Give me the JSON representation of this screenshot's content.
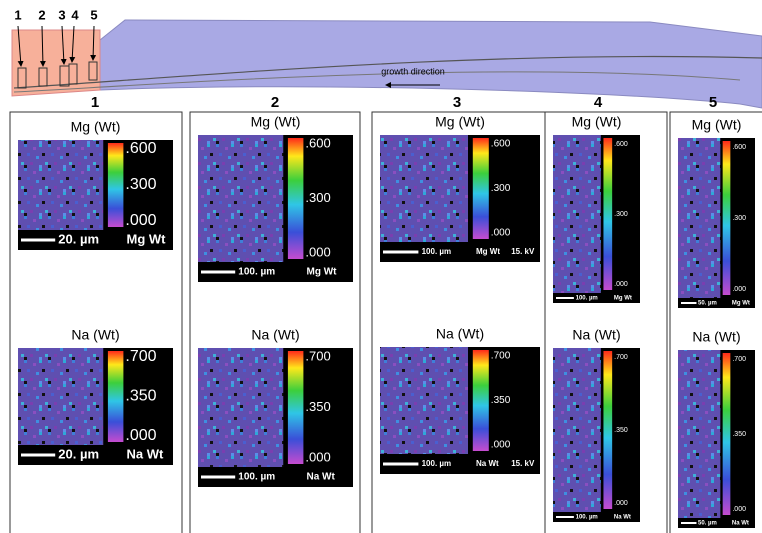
{
  "diagram": {
    "markers": [
      "1",
      "2",
      "3",
      "4",
      "5"
    ],
    "arrow_label": "growth direction"
  },
  "panels": [
    {
      "title": "1",
      "maps": [
        {
          "label": "Mg (Wt)",
          "scale_ticks": [
            ".600",
            ".300",
            ".000"
          ],
          "scale_bar": "20. µm",
          "element": "Mg Wt"
        },
        {
          "label": "Na (Wt)",
          "scale_ticks": [
            ".700",
            ".350",
            ".000"
          ],
          "scale_bar": "20. µm",
          "element": "Na Wt"
        }
      ]
    },
    {
      "title": "2",
      "maps": [
        {
          "label": "Mg (Wt)",
          "scale_ticks": [
            ".600",
            ".300",
            ".000"
          ],
          "scale_bar": "100. µm",
          "element": "Mg Wt"
        },
        {
          "label": "Na (Wt)",
          "scale_ticks": [
            ".700",
            ".350",
            ".000"
          ],
          "scale_bar": "100. µm",
          "element": "Na Wt"
        }
      ]
    },
    {
      "title": "3",
      "maps": [
        {
          "label": "Mg (Wt)",
          "scale_ticks": [
            ".600",
            ".300",
            ".000"
          ],
          "scale_bar": "100. µm",
          "element": "Mg Wt",
          "voltage": "15. kV"
        },
        {
          "label": "Na (Wt)",
          "scale_ticks": [
            ".700",
            ".350",
            ".000"
          ],
          "scale_bar": "100. µm",
          "element": "Na Wt",
          "voltage": "15. kV"
        }
      ]
    },
    {
      "title": "4",
      "maps": [
        {
          "label": "Mg (Wt)",
          "scale_ticks": [
            ".600",
            ".300",
            ".000"
          ],
          "scale_bar": "100. µm",
          "element": "Mg Wt"
        },
        {
          "label": "Na (Wt)",
          "scale_ticks": [
            ".700",
            ".350",
            ".000"
          ],
          "scale_bar": "100. µm",
          "element": "Na Wt"
        }
      ]
    },
    {
      "title": "5",
      "maps": [
        {
          "label": "Mg (Wt)",
          "scale_ticks": [
            ".600",
            ".300",
            ".000"
          ],
          "scale_bar": "50. µm",
          "element": "Mg Wt"
        },
        {
          "label": "Na (Wt)",
          "scale_ticks": [
            ".700",
            ".350",
            ".000"
          ],
          "scale_bar": "50. µm",
          "element": "Na Wt"
        }
      ]
    }
  ]
}
